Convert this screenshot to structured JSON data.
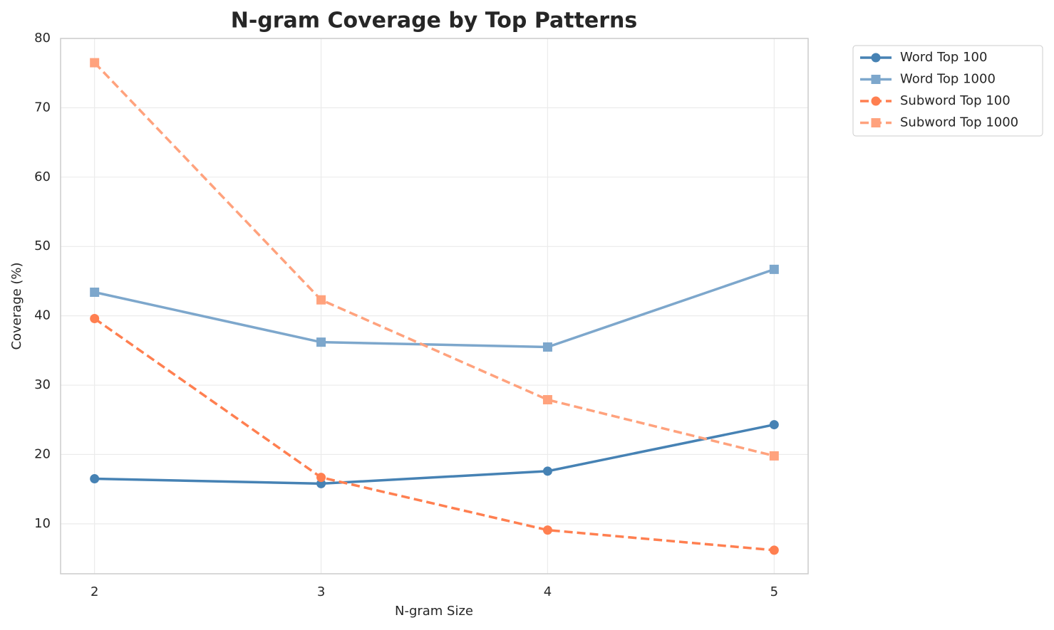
{
  "chart_data": {
    "type": "line",
    "title": "N-gram Coverage by Top Patterns",
    "x_label": "N-gram Size",
    "y_label": "Coverage (%)",
    "x": [
      2,
      3,
      4,
      5
    ],
    "series": [
      {
        "name": "Word Top 100",
        "color": "#4682b4",
        "marker": "circle",
        "dash": false,
        "values": [
          16.5,
          15.8,
          17.6,
          24.3
        ]
      },
      {
        "name": "Word Top 1000",
        "color": "#7da7cc",
        "marker": "square",
        "dash": false,
        "values": [
          43.4,
          36.2,
          35.5,
          46.7
        ]
      },
      {
        "name": "Subword Top 100",
        "color": "#ff7f50",
        "marker": "circle",
        "dash": true,
        "values": [
          39.6,
          16.7,
          9.1,
          6.2
        ]
      },
      {
        "name": "Subword Top 1000",
        "color": "#ffa27d",
        "marker": "square",
        "dash": true,
        "values": [
          76.5,
          42.3,
          27.9,
          19.8
        ]
      }
    ],
    "xlim": [
      1.85,
      5.15
    ],
    "xticks": [
      2,
      3,
      4,
      5
    ],
    "ylim": [
      2.8,
      80
    ],
    "yticks": [
      10,
      20,
      30,
      40,
      50,
      60,
      70,
      80
    ],
    "grid": true,
    "legend": "outside-upper-right"
  }
}
